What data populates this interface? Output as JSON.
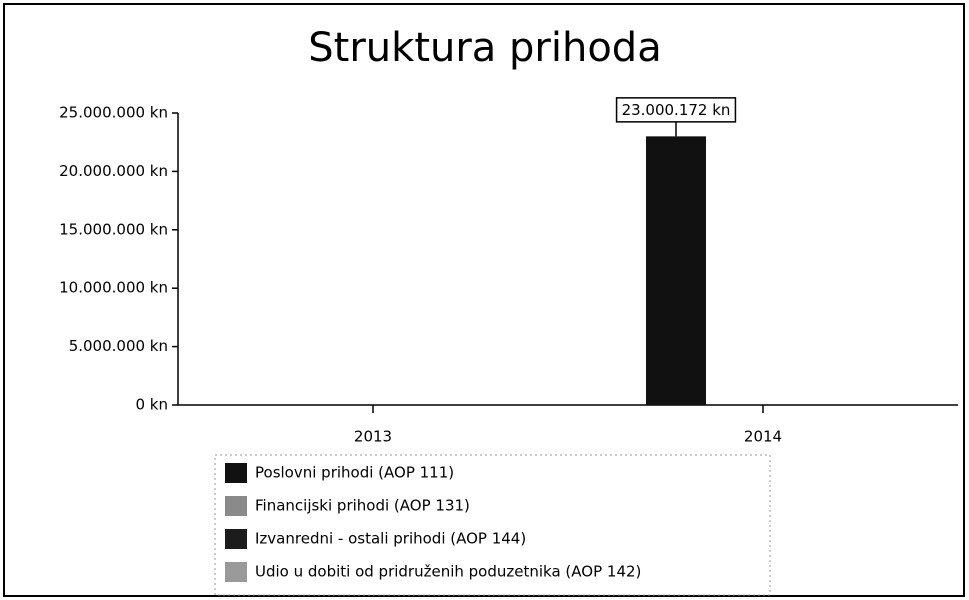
{
  "chart_data": {
    "type": "bar",
    "title": "Struktura prihoda",
    "categories": [
      "2013",
      "2014"
    ],
    "series": [
      {
        "name": "Poslovni prihodi (AOP 111)",
        "color": "#111111",
        "values": [
          0,
          23000172
        ],
        "value_labels": [
          null,
          "23.000.172 kn"
        ]
      },
      {
        "name": "Financijski prihodi (AOP 131)",
        "color": "#8a8a8a",
        "values": [
          0,
          0
        ]
      },
      {
        "name": "Izvanredni - ostali prihodi (AOP 144)",
        "color": "#1c1c1c",
        "values": [
          0,
          0
        ]
      },
      {
        "name": "Udio u dobiti od pridruženih poduzetnika (AOP 142)",
        "color": "#9a9a9a",
        "values": [
          0,
          0
        ]
      }
    ],
    "ylim": [
      0,
      25000000
    ],
    "yticks": [
      {
        "value": 0,
        "label": "0 kn"
      },
      {
        "value": 5000000,
        "label": "5.000.000 kn"
      },
      {
        "value": 10000000,
        "label": "10.000.000 kn"
      },
      {
        "value": 15000000,
        "label": "15.000.000 kn"
      },
      {
        "value": 20000000,
        "label": "20.000.000 kn"
      },
      {
        "value": 25000000,
        "label": "25.000.000 kn"
      }
    ],
    "grid": false
  }
}
